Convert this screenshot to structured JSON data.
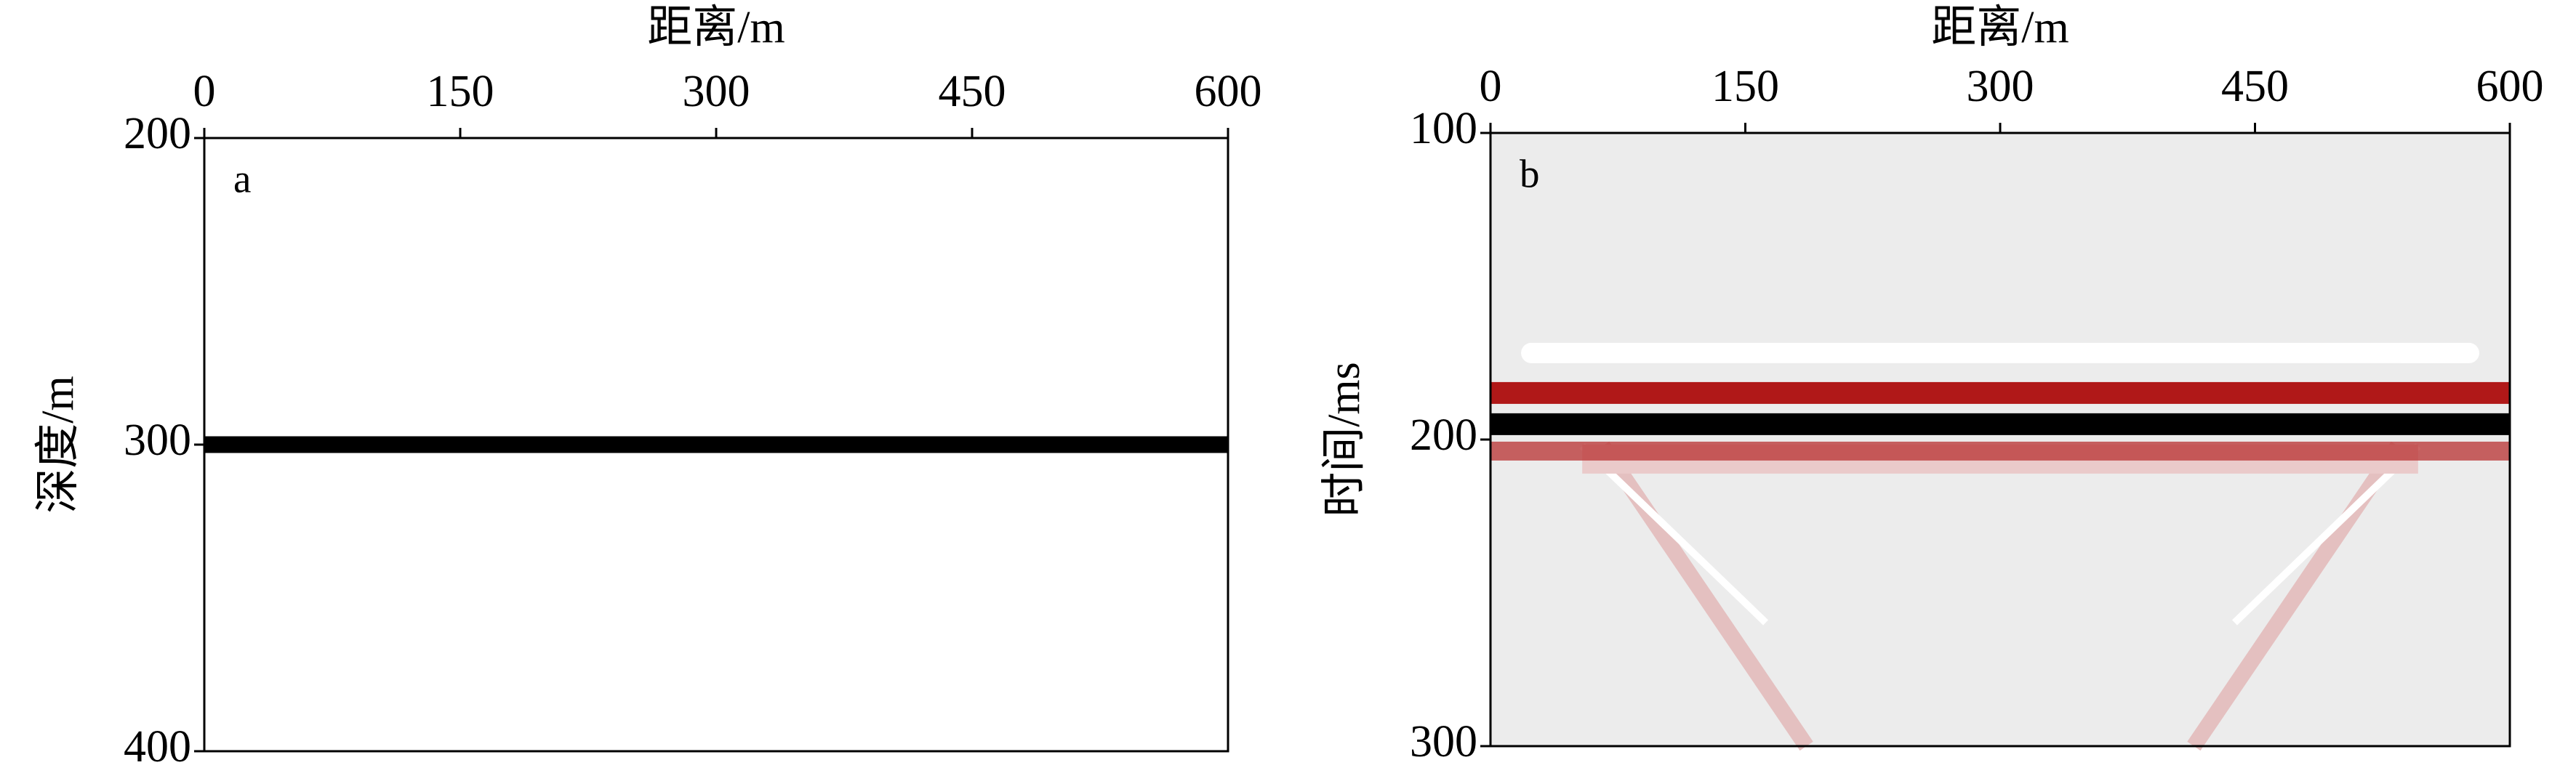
{
  "chart_data": [
    {
      "type": "line",
      "panel_label": "a",
      "xlabel": "距离/m",
      "ylabel": "深度/m",
      "xlim": [
        0,
        600
      ],
      "xticks": [
        0,
        150,
        300,
        450,
        600
      ],
      "ylim": [
        200,
        400
      ],
      "yticks": [
        200,
        300,
        400
      ],
      "y_inverted": true,
      "x": [
        0,
        600
      ],
      "values": [
        300,
        300
      ],
      "color": "#000000",
      "background": "#ffffff"
    },
    {
      "type": "seismic",
      "panel_label": "b",
      "xlabel": "距离/m",
      "ylabel": "时间/ms",
      "xlim": [
        0,
        600
      ],
      "xticks": [
        0,
        150,
        300,
        450,
        600
      ],
      "ylim": [
        100,
        300
      ],
      "yticks": [
        100,
        200,
        300
      ],
      "y_inverted": true,
      "x": [
        0,
        600
      ],
      "values": [
        195,
        195
      ],
      "color": "#000000",
      "background": "#ececec"
    }
  ]
}
